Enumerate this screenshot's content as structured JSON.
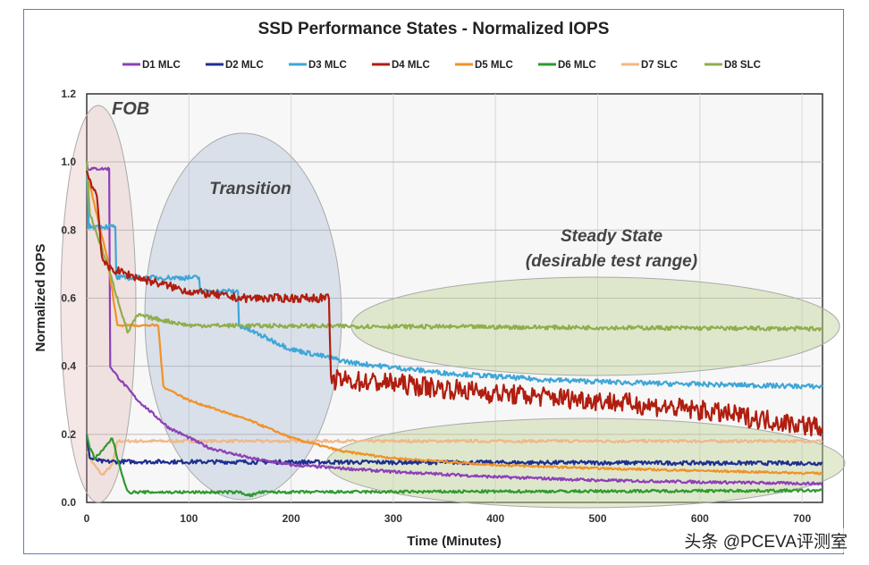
{
  "chart_data": {
    "type": "line",
    "title": "SSD Performance States - Normalized IOPS",
    "xlabel": "Time (Minutes)",
    "ylabel": "Normalized IOPS",
    "xlim": [
      0,
      720
    ],
    "ylim": [
      0,
      1.2
    ],
    "xticks": [
      "0",
      "100",
      "200",
      "300",
      "400",
      "500",
      "600",
      "700"
    ],
    "yticks": [
      "0.0",
      "0.2",
      "0.4",
      "0.6",
      "0.8",
      "1.0",
      "1.2"
    ],
    "grid": true,
    "legend_position": "top",
    "annotations": {
      "fob": "FOB",
      "transition": "Transition",
      "steady_line1": "Steady State",
      "steady_line2": "(desirable test range)"
    },
    "series": [
      {
        "name": "D1 MLC",
        "color": "#8e3fb8",
        "noise": 0.004,
        "points": [
          [
            0,
            1.0
          ],
          [
            1,
            0.98
          ],
          [
            22,
            0.98
          ],
          [
            23,
            0.4
          ],
          [
            30,
            0.37
          ],
          [
            50,
            0.3
          ],
          [
            80,
            0.22
          ],
          [
            120,
            0.16
          ],
          [
            160,
            0.13
          ],
          [
            200,
            0.11
          ],
          [
            300,
            0.09
          ],
          [
            400,
            0.075
          ],
          [
            500,
            0.065
          ],
          [
            600,
            0.06
          ],
          [
            720,
            0.055
          ]
        ]
      },
      {
        "name": "D2 MLC",
        "color": "#1f2f8f",
        "noise": 0.006,
        "points": [
          [
            0,
            0.2
          ],
          [
            3,
            0.13
          ],
          [
            15,
            0.12
          ],
          [
            720,
            0.115
          ]
        ]
      },
      {
        "name": "D3 MLC",
        "color": "#3fa6d8",
        "noise": 0.007,
        "points": [
          [
            0,
            1.0
          ],
          [
            2,
            0.81
          ],
          [
            28,
            0.81
          ],
          [
            29,
            0.66
          ],
          [
            110,
            0.66
          ],
          [
            111,
            0.62
          ],
          [
            148,
            0.62
          ],
          [
            149,
            0.52
          ],
          [
            200,
            0.45
          ],
          [
            260,
            0.41
          ],
          [
            350,
            0.38
          ],
          [
            450,
            0.36
          ],
          [
            550,
            0.35
          ],
          [
            720,
            0.34
          ]
        ]
      },
      {
        "name": "D4 MLC",
        "color": "#b01e10",
        "noise": 0.012,
        "points": [
          [
            0,
            0.97
          ],
          [
            10,
            0.9
          ],
          [
            15,
            0.72
          ],
          [
            20,
            0.69
          ],
          [
            50,
            0.66
          ],
          [
            100,
            0.62
          ],
          [
            150,
            0.6
          ],
          [
            237,
            0.6
          ],
          [
            239,
            0.36
          ],
          [
            300,
            0.35
          ],
          [
            400,
            0.32
          ],
          [
            500,
            0.3
          ],
          [
            600,
            0.27
          ],
          [
            720,
            0.22
          ]
        ]
      },
      {
        "name": "D5 MLC",
        "color": "#f0922a",
        "noise": 0.003,
        "points": [
          [
            0,
            0.97
          ],
          [
            20,
            0.72
          ],
          [
            30,
            0.52
          ],
          [
            70,
            0.52
          ],
          [
            75,
            0.34
          ],
          [
            100,
            0.3
          ],
          [
            130,
            0.27
          ],
          [
            160,
            0.24
          ],
          [
            200,
            0.19
          ],
          [
            250,
            0.15
          ],
          [
            300,
            0.13
          ],
          [
            400,
            0.11
          ],
          [
            500,
            0.1
          ],
          [
            720,
            0.085
          ]
        ]
      },
      {
        "name": "D6 MLC",
        "color": "#2e9a2e",
        "noise": 0.004,
        "points": [
          [
            0,
            0.2
          ],
          [
            3,
            0.16
          ],
          [
            8,
            0.13
          ],
          [
            15,
            0.15
          ],
          [
            25,
            0.19
          ],
          [
            30,
            0.13
          ],
          [
            40,
            0.03
          ],
          [
            150,
            0.03
          ],
          [
            160,
            0.02
          ],
          [
            170,
            0.03
          ],
          [
            720,
            0.035
          ]
        ]
      },
      {
        "name": "D7 SLC",
        "color": "#f0b887",
        "noise": 0.004,
        "points": [
          [
            0,
            0.15
          ],
          [
            5,
            0.12
          ],
          [
            15,
            0.08
          ],
          [
            25,
            0.11
          ],
          [
            30,
            0.18
          ],
          [
            720,
            0.18
          ]
        ]
      },
      {
        "name": "D8 SLC",
        "color": "#8fae4c",
        "noise": 0.006,
        "points": [
          [
            0,
            1.0
          ],
          [
            3,
            0.85
          ],
          [
            20,
            0.7
          ],
          [
            30,
            0.6
          ],
          [
            40,
            0.5
          ],
          [
            50,
            0.55
          ],
          [
            100,
            0.52
          ],
          [
            720,
            0.51
          ]
        ]
      }
    ]
  },
  "watermark": "头条 @PCEVA评测室"
}
